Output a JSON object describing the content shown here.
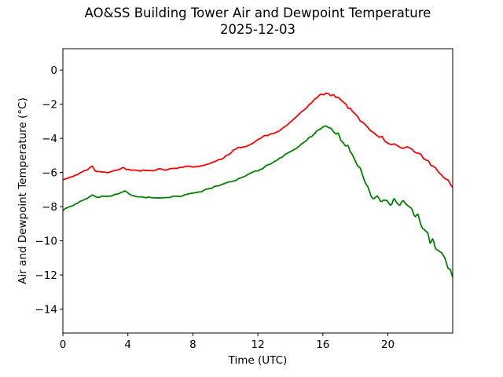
{
  "page": {
    "background": "#ffffff"
  },
  "chart_data": {
    "type": "line",
    "title": "AO&SS Building Tower Air and Dewpoint Temperature",
    "subtitle": "2025-12-03",
    "xlabel": "Time (UTC)",
    "ylabel": "Air and Dewpoint Temperature (°C)",
    "xlim": [
      0,
      23.99
    ],
    "ylim": [
      -15.4,
      1.25
    ],
    "grid": false,
    "legend": "none",
    "axis_color": "#000000",
    "background_color": "#ffffff",
    "xticks": {
      "values": [
        0,
        4,
        8,
        12,
        16,
        20
      ],
      "labels": [
        "0",
        "4",
        "8",
        "12",
        "16",
        "20"
      ]
    },
    "yticks": {
      "values": [
        0,
        -2,
        -4,
        -6,
        -8,
        -10,
        -12,
        -14
      ],
      "labels": [
        "0",
        "−2",
        "−4",
        "−6",
        "−8",
        "−10",
        "−12",
        "−14"
      ]
    },
    "series": [
      {
        "id": "air-temperature",
        "name": "Air Temperature",
        "color": "#ff0000",
        "noise": 0.035,
        "points": [
          [
            0,
            -6.45
          ],
          [
            0.3,
            -6.35
          ],
          [
            0.7,
            -6.2
          ],
          [
            1.1,
            -6.0
          ],
          [
            1.5,
            -5.85
          ],
          [
            1.8,
            -5.63
          ],
          [
            2.0,
            -5.92
          ],
          [
            2.4,
            -5.95
          ],
          [
            2.8,
            -6.0
          ],
          [
            3.1,
            -5.92
          ],
          [
            3.4,
            -5.85
          ],
          [
            3.65,
            -5.7
          ],
          [
            3.9,
            -5.8
          ],
          [
            4.3,
            -5.87
          ],
          [
            4.7,
            -5.9
          ],
          [
            5.1,
            -5.85
          ],
          [
            5.5,
            -5.88
          ],
          [
            5.9,
            -5.8
          ],
          [
            6.3,
            -5.84
          ],
          [
            6.7,
            -5.78
          ],
          [
            7.1,
            -5.72
          ],
          [
            7.45,
            -5.65
          ],
          [
            7.7,
            -5.6
          ],
          [
            8.0,
            -5.7
          ],
          [
            8.35,
            -5.66
          ],
          [
            8.7,
            -5.58
          ],
          [
            9.0,
            -5.5
          ],
          [
            9.4,
            -5.35
          ],
          [
            9.8,
            -5.18
          ],
          [
            10.2,
            -4.95
          ],
          [
            10.5,
            -4.7
          ],
          [
            10.8,
            -4.55
          ],
          [
            11.1,
            -4.5
          ],
          [
            11.45,
            -4.42
          ],
          [
            11.75,
            -4.28
          ],
          [
            12.05,
            -4.05
          ],
          [
            12.35,
            -3.88
          ],
          [
            12.65,
            -3.8
          ],
          [
            12.95,
            -3.72
          ],
          [
            13.25,
            -3.58
          ],
          [
            13.55,
            -3.38
          ],
          [
            13.95,
            -3.08
          ],
          [
            14.35,
            -2.78
          ],
          [
            14.75,
            -2.42
          ],
          [
            15.15,
            -2.05
          ],
          [
            15.55,
            -1.7
          ],
          [
            15.85,
            -1.42
          ],
          [
            16.05,
            -1.35
          ],
          [
            16.25,
            -1.44
          ],
          [
            16.45,
            -1.5
          ],
          [
            16.65,
            -1.42
          ],
          [
            16.9,
            -1.58
          ],
          [
            17.15,
            -1.85
          ],
          [
            17.45,
            -2.1
          ],
          [
            17.75,
            -2.4
          ],
          [
            18.05,
            -2.68
          ],
          [
            18.35,
            -2.95
          ],
          [
            18.65,
            -3.28
          ],
          [
            18.95,
            -3.52
          ],
          [
            19.25,
            -3.72
          ],
          [
            19.55,
            -3.92
          ],
          [
            19.85,
            -4.12
          ],
          [
            20.15,
            -4.28
          ],
          [
            20.45,
            -4.4
          ],
          [
            20.75,
            -4.47
          ],
          [
            21.0,
            -4.52
          ],
          [
            21.2,
            -4.42
          ],
          [
            21.5,
            -4.57
          ],
          [
            21.8,
            -4.82
          ],
          [
            22.1,
            -5.1
          ],
          [
            22.4,
            -5.32
          ],
          [
            22.7,
            -5.52
          ],
          [
            23.0,
            -5.8
          ],
          [
            23.3,
            -6.05
          ],
          [
            23.6,
            -6.42
          ],
          [
            23.8,
            -6.62
          ],
          [
            23.99,
            -6.95
          ]
        ]
      },
      {
        "id": "dewpoint-temperature",
        "name": "Dewpoint Temperature",
        "color": "#008000",
        "noise": 0.045,
        "points": [
          [
            0,
            -8.2
          ],
          [
            0.3,
            -8.05
          ],
          [
            0.7,
            -7.88
          ],
          [
            1.1,
            -7.68
          ],
          [
            1.5,
            -7.48
          ],
          [
            1.85,
            -7.3
          ],
          [
            2.1,
            -7.42
          ],
          [
            2.5,
            -7.42
          ],
          [
            2.9,
            -7.35
          ],
          [
            3.2,
            -7.3
          ],
          [
            3.5,
            -7.2
          ],
          [
            3.8,
            -7.08
          ],
          [
            4.05,
            -7.25
          ],
          [
            4.35,
            -7.35
          ],
          [
            4.75,
            -7.42
          ],
          [
            5.15,
            -7.45
          ],
          [
            5.6,
            -7.46
          ],
          [
            6.1,
            -7.45
          ],
          [
            6.6,
            -7.44
          ],
          [
            7.1,
            -7.38
          ],
          [
            7.55,
            -7.3
          ],
          [
            8.0,
            -7.2
          ],
          [
            8.5,
            -7.1
          ],
          [
            9.0,
            -6.95
          ],
          [
            9.5,
            -6.8
          ],
          [
            10.0,
            -6.65
          ],
          [
            10.5,
            -6.48
          ],
          [
            11.0,
            -6.3
          ],
          [
            11.5,
            -6.1
          ],
          [
            12.0,
            -5.88
          ],
          [
            12.5,
            -5.65
          ],
          [
            13.0,
            -5.38
          ],
          [
            13.5,
            -5.08
          ],
          [
            14.0,
            -4.78
          ],
          [
            14.45,
            -4.5
          ],
          [
            14.85,
            -4.25
          ],
          [
            15.25,
            -3.9
          ],
          [
            15.65,
            -3.55
          ],
          [
            15.95,
            -3.3
          ],
          [
            16.15,
            -3.25
          ],
          [
            16.35,
            -3.32
          ],
          [
            16.55,
            -3.42
          ],
          [
            16.85,
            -3.68
          ],
          [
            17.15,
            -4.05
          ],
          [
            17.45,
            -4.42
          ],
          [
            17.75,
            -4.8
          ],
          [
            18.0,
            -5.3
          ],
          [
            18.2,
            -5.62
          ],
          [
            18.45,
            -6.1
          ],
          [
            18.7,
            -6.8
          ],
          [
            18.95,
            -7.35
          ],
          [
            19.15,
            -7.45
          ],
          [
            19.35,
            -7.28
          ],
          [
            19.55,
            -7.65
          ],
          [
            19.75,
            -7.55
          ],
          [
            19.95,
            -7.72
          ],
          [
            20.15,
            -7.9
          ],
          [
            20.35,
            -7.6
          ],
          [
            20.55,
            -7.72
          ],
          [
            20.75,
            -7.85
          ],
          [
            20.95,
            -7.7
          ],
          [
            21.15,
            -7.95
          ],
          [
            21.35,
            -8.12
          ],
          [
            21.55,
            -8.32
          ],
          [
            21.7,
            -8.6
          ],
          [
            21.85,
            -8.45
          ],
          [
            22.0,
            -8.9
          ],
          [
            22.15,
            -9.25
          ],
          [
            22.3,
            -9.42
          ],
          [
            22.45,
            -9.6
          ],
          [
            22.6,
            -10.2
          ],
          [
            22.75,
            -9.95
          ],
          [
            22.9,
            -10.32
          ],
          [
            23.1,
            -10.5
          ],
          [
            23.3,
            -10.68
          ],
          [
            23.5,
            -11.0
          ],
          [
            23.7,
            -11.5
          ],
          [
            23.85,
            -11.72
          ],
          [
            23.99,
            -12.05
          ]
        ]
      }
    ],
    "render": {
      "line_width": 1.8,
      "tick_font": 13.5,
      "dt": 0.02,
      "noise_block": 0.15,
      "noise_late_start": 15.5,
      "noise_late_factor": 3,
      "seed": 77
    }
  }
}
